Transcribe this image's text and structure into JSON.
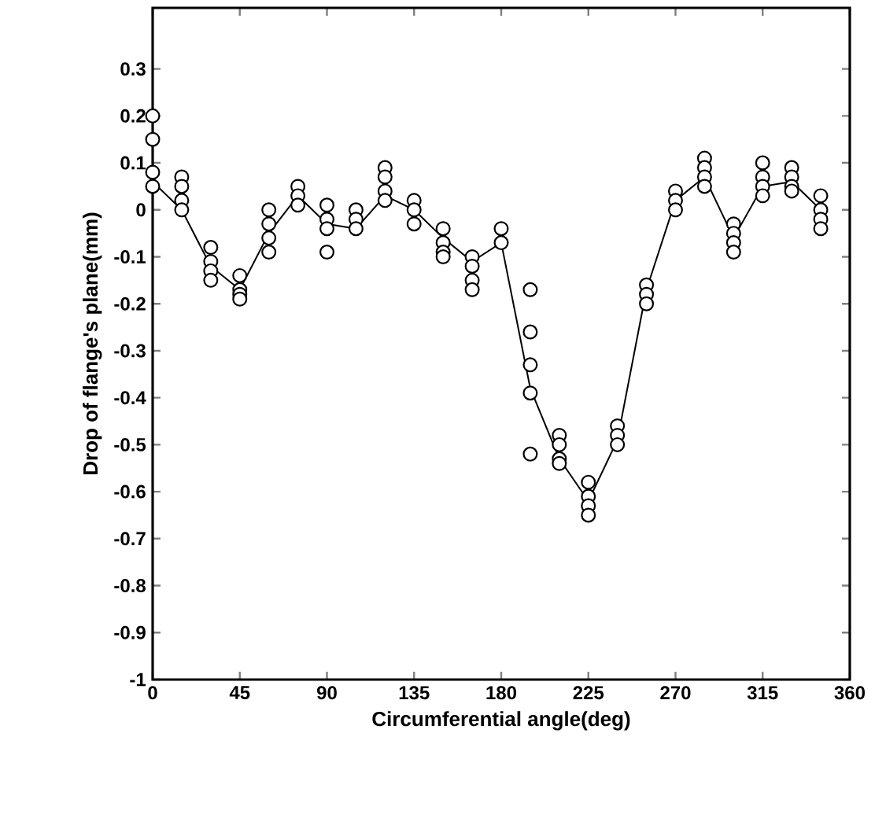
{
  "chart_data": {
    "type": "scatter",
    "xlabel": "Circumferential angle(deg)",
    "ylabel": "Drop of flange's plane(mm)",
    "xlim": [
      0,
      360
    ],
    "ylim": [
      -1,
      0.43
    ],
    "xticks": [
      0,
      45,
      90,
      135,
      180,
      225,
      270,
      315,
      360
    ],
    "yticks": [
      -1,
      -0.9,
      -0.8,
      -0.7,
      -0.6,
      -0.5,
      -0.4,
      -0.3,
      -0.2,
      -0.1,
      0,
      0.1,
      0.2,
      0.3
    ],
    "series": [
      {
        "marker": "circle",
        "color": "#000000",
        "x": [
          0,
          0,
          0,
          0,
          15,
          15,
          15,
          15,
          30,
          30,
          30,
          30,
          45,
          45,
          45,
          45,
          60,
          60,
          60,
          60,
          75,
          75,
          75,
          90,
          90,
          90,
          90,
          105,
          105,
          105,
          120,
          120,
          120,
          120,
          135,
          135,
          135,
          150,
          150,
          150,
          150,
          165,
          165,
          165,
          165,
          180,
          180,
          195,
          195,
          195,
          195,
          195,
          210,
          210,
          210,
          210,
          225,
          225,
          225,
          225,
          240,
          240,
          240,
          255,
          255,
          255,
          270,
          270,
          270,
          285,
          285,
          285,
          285,
          300,
          300,
          300,
          300,
          315,
          315,
          315,
          315,
          330,
          330,
          330,
          330,
          345,
          345,
          345,
          345
        ],
        "values": [
          0.2,
          0.15,
          0.08,
          0.05,
          0.07,
          0.05,
          0.02,
          0.0,
          -0.08,
          -0.11,
          -0.13,
          -0.15,
          -0.14,
          -0.17,
          -0.18,
          -0.19,
          0.0,
          -0.03,
          -0.06,
          -0.09,
          0.05,
          0.03,
          0.01,
          0.01,
          -0.02,
          -0.04,
          -0.09,
          0.0,
          -0.02,
          -0.04,
          0.09,
          0.07,
          0.04,
          0.02,
          0.02,
          0.0,
          -0.03,
          -0.04,
          -0.07,
          -0.09,
          -0.1,
          -0.1,
          -0.12,
          -0.15,
          -0.17,
          -0.04,
          -0.07,
          -0.17,
          -0.26,
          -0.33,
          -0.39,
          -0.52,
          -0.48,
          -0.5,
          -0.53,
          -0.54,
          -0.58,
          -0.61,
          -0.63,
          -0.65,
          -0.46,
          -0.48,
          -0.5,
          -0.16,
          -0.18,
          -0.2,
          0.04,
          0.02,
          0.0,
          0.11,
          0.09,
          0.07,
          0.05,
          -0.03,
          -0.05,
          -0.07,
          -0.09,
          0.1,
          0.07,
          0.05,
          0.03,
          0.09,
          0.07,
          0.05,
          0.04,
          0.03,
          0.0,
          -0.02,
          -0.04
        ]
      },
      {
        "type": "line",
        "marker": "none",
        "line_style": "solid",
        "color": "#000000",
        "x": [
          0,
          15,
          30,
          45,
          60,
          75,
          90,
          105,
          120,
          135,
          150,
          165,
          180,
          195,
          210,
          225,
          240,
          255,
          270,
          285,
          300,
          315,
          330,
          345
        ],
        "values": [
          0.06,
          0.0,
          -0.12,
          -0.17,
          -0.05,
          0.03,
          -0.03,
          -0.04,
          0.03,
          0.0,
          -0.06,
          -0.11,
          -0.07,
          -0.38,
          -0.53,
          -0.62,
          -0.49,
          -0.17,
          0.02,
          0.07,
          -0.06,
          0.05,
          0.06,
          0.0
        ]
      }
    ]
  }
}
